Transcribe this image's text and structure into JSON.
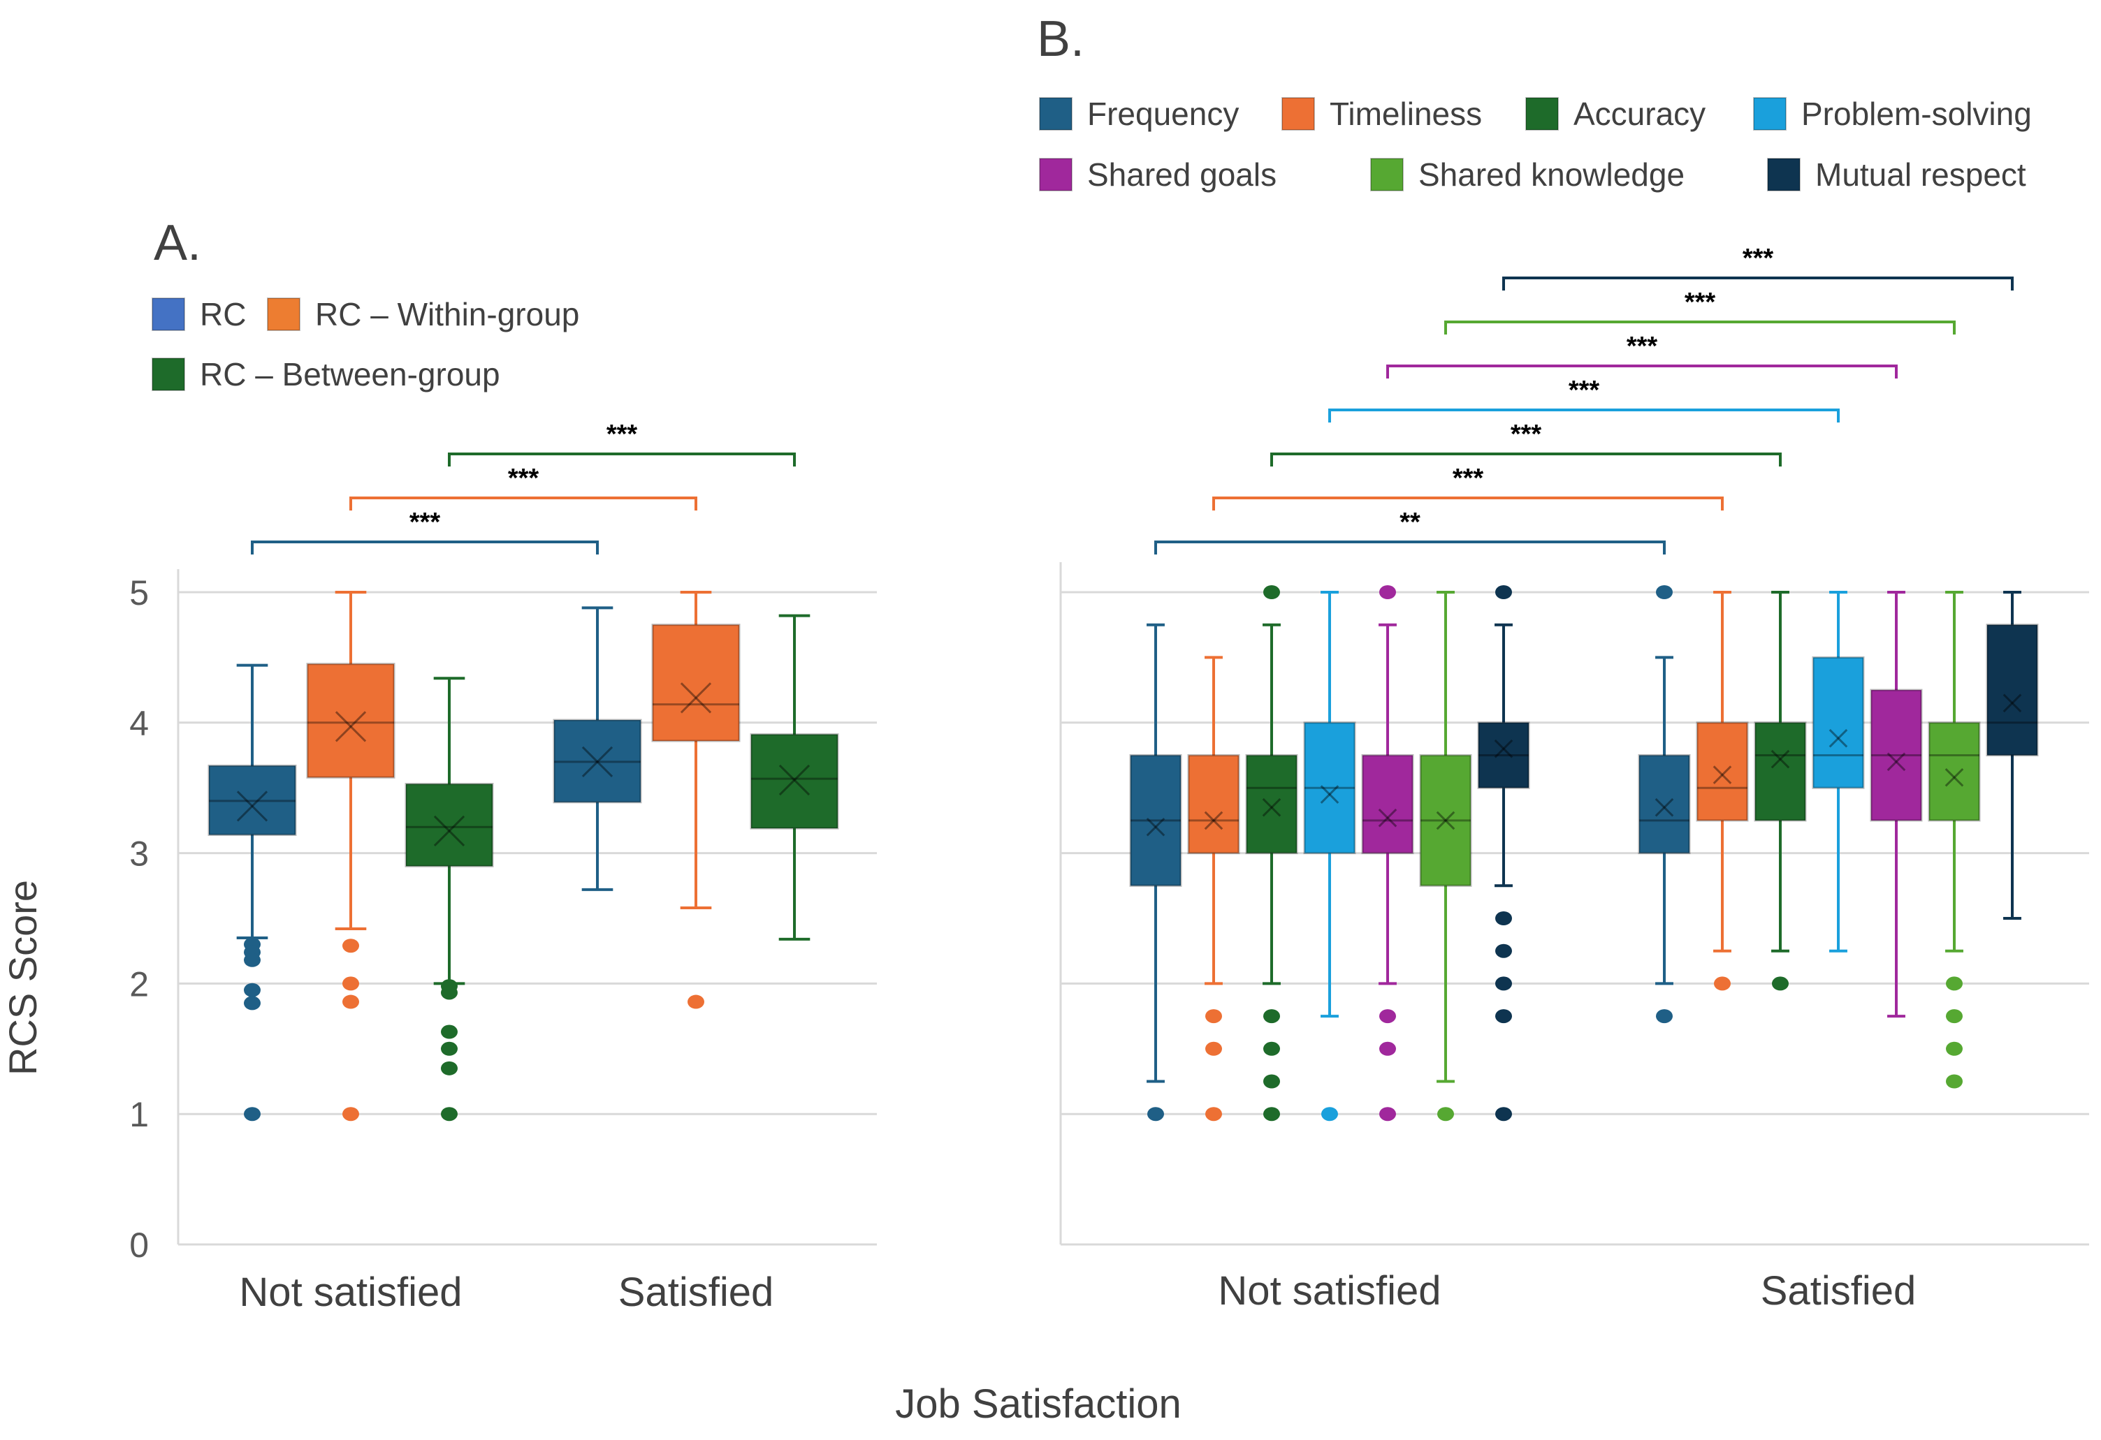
{
  "chart_data": [
    {
      "panel_label": "A.",
      "type": "box",
      "categories": [
        "Not satisfied",
        "Satisfied"
      ],
      "ylabel": "RCS Score",
      "ylim": [
        0,
        5
      ],
      "yticks": [
        "0",
        "1",
        "2",
        "3",
        "4",
        "5"
      ],
      "grid": true,
      "legend": [
        {
          "name": "RC",
          "color": "#4472c4"
        },
        {
          "name": "RC – Within-group",
          "color": "#ed7d31"
        },
        {
          "name": "RC – Between-group",
          "color": "#1e6b2a"
        }
      ],
      "series": [
        {
          "name": "RC",
          "color": "#1f5f86",
          "boxes": [
            {
              "min": 2.35,
              "q1": 3.14,
              "median": 3.4,
              "q3": 3.67,
              "max": 4.44,
              "mean": 3.36,
              "outliers": [
                2.3,
                2.24,
                2.18,
                1.95,
                1.85,
                1.0
              ]
            },
            {
              "min": 2.72,
              "q1": 3.39,
              "median": 3.7,
              "q3": 4.02,
              "max": 4.88,
              "mean": 3.7,
              "outliers": []
            }
          ]
        },
        {
          "name": "RC – Within-group",
          "color": "#ed7034",
          "boxes": [
            {
              "min": 2.42,
              "q1": 3.58,
              "median": 4.0,
              "q3": 4.45,
              "max": 5.0,
              "mean": 3.97,
              "outliers": [
                2.29,
                2.0,
                1.86,
                1.0
              ]
            },
            {
              "min": 2.58,
              "q1": 3.86,
              "median": 4.14,
              "q3": 4.75,
              "max": 5.0,
              "mean": 4.19,
              "outliers": [
                1.86
              ]
            }
          ]
        },
        {
          "name": "RC – Between-group",
          "color": "#1e6b2a",
          "boxes": [
            {
              "min": 2.0,
              "q1": 2.9,
              "median": 3.2,
              "q3": 3.53,
              "max": 4.34,
              "mean": 3.17,
              "outliers": [
                1.98,
                1.93,
                1.63,
                1.5,
                1.35,
                1.0
              ]
            },
            {
              "min": 2.34,
              "q1": 3.19,
              "median": 3.57,
              "q3": 3.91,
              "max": 4.82,
              "mean": 3.56,
              "outliers": []
            }
          ]
        }
      ],
      "significance": [
        {
          "series": "RC",
          "label": "***"
        },
        {
          "series": "RC – Within-group",
          "label": "***"
        },
        {
          "series": "RC – Between-group",
          "label": "***"
        }
      ]
    },
    {
      "panel_label": "B.",
      "type": "box",
      "categories": [
        "Not satisfied",
        "Satisfied"
      ],
      "ylim": [
        0,
        5
      ],
      "grid": true,
      "legend": [
        {
          "name": "Frequency",
          "color": "#1f5f86"
        },
        {
          "name": "Timeliness",
          "color": "#ed7034"
        },
        {
          "name": "Accuracy",
          "color": "#1e6b2a"
        },
        {
          "name": "Problem-solving",
          "color": "#1aa0dc"
        },
        {
          "name": "Shared goals",
          "color": "#a0289c"
        },
        {
          "name": "Shared knowledge",
          "color": "#56a832"
        },
        {
          "name": "Mutual respect",
          "color": "#0e3450"
        }
      ],
      "series": [
        {
          "name": "Frequency",
          "color": "#1f5f86",
          "boxes": [
            {
              "min": 1.25,
              "q1": 2.75,
              "median": 3.25,
              "q3": 3.75,
              "max": 4.75,
              "mean": 3.2,
              "outliers": [
                1.0
              ]
            },
            {
              "min": 2.0,
              "q1": 3.0,
              "median": 3.25,
              "q3": 3.75,
              "max": 4.5,
              "mean": 3.35,
              "outliers": [
                5.0,
                1.75
              ]
            }
          ]
        },
        {
          "name": "Timeliness",
          "color": "#ed7034",
          "boxes": [
            {
              "min": 2.0,
              "q1": 3.0,
              "median": 3.25,
              "q3": 3.75,
              "max": 4.5,
              "mean": 3.25,
              "outliers": [
                1.75,
                1.5,
                1.0
              ]
            },
            {
              "min": 2.25,
              "q1": 3.25,
              "median": 3.5,
              "q3": 4.0,
              "max": 5.0,
              "mean": 3.6,
              "outliers": [
                2.0
              ]
            }
          ]
        },
        {
          "name": "Accuracy",
          "color": "#1e6b2a",
          "boxes": [
            {
              "min": 2.0,
              "q1": 3.0,
              "median": 3.5,
              "q3": 3.75,
              "max": 4.75,
              "mean": 3.35,
              "outliers": [
                5.0,
                1.75,
                1.5,
                1.25,
                1.0
              ]
            },
            {
              "min": 2.25,
              "q1": 3.25,
              "median": 3.75,
              "q3": 4.0,
              "max": 5.0,
              "mean": 3.72,
              "outliers": [
                2.0
              ]
            }
          ]
        },
        {
          "name": "Problem-solving",
          "color": "#1aa0dc",
          "boxes": [
            {
              "min": 1.75,
              "q1": 3.0,
              "median": 3.5,
              "q3": 4.0,
              "max": 5.0,
              "mean": 3.45,
              "outliers": [
                1.0
              ]
            },
            {
              "min": 2.25,
              "q1": 3.5,
              "median": 3.75,
              "q3": 4.5,
              "max": 5.0,
              "mean": 3.88,
              "outliers": []
            }
          ]
        },
        {
          "name": "Shared goals",
          "color": "#a0289c",
          "boxes": [
            {
              "min": 2.0,
              "q1": 3.0,
              "median": 3.25,
              "q3": 3.75,
              "max": 4.75,
              "mean": 3.27,
              "outliers": [
                5.0,
                1.75,
                1.5,
                1.0
              ]
            },
            {
              "min": 1.75,
              "q1": 3.25,
              "median": 3.75,
              "q3": 4.25,
              "max": 5.0,
              "mean": 3.7,
              "outliers": []
            }
          ]
        },
        {
          "name": "Shared knowledge",
          "color": "#56a832",
          "boxes": [
            {
              "min": 1.25,
              "q1": 2.75,
              "median": 3.25,
              "q3": 3.75,
              "max": 5.0,
              "mean": 3.25,
              "outliers": [
                1.0
              ]
            },
            {
              "min": 2.25,
              "q1": 3.25,
              "median": 3.75,
              "q3": 4.0,
              "max": 5.0,
              "mean": 3.58,
              "outliers": [
                2.0,
                1.75,
                1.5,
                1.25
              ]
            }
          ]
        },
        {
          "name": "Mutual respect",
          "color": "#0e3450",
          "boxes": [
            {
              "min": 2.75,
              "q1": 3.5,
              "median": 3.75,
              "q3": 4.0,
              "max": 4.75,
              "mean": 3.8,
              "outliers": [
                5.0,
                2.5,
                2.25,
                2.0,
                1.75,
                1.0
              ]
            },
            {
              "min": 2.5,
              "q1": 3.75,
              "median": 4.0,
              "q3": 4.75,
              "max": 5.0,
              "mean": 4.15,
              "outliers": []
            }
          ]
        }
      ],
      "significance": [
        {
          "series": "Frequency",
          "label": "**"
        },
        {
          "series": "Timeliness",
          "label": "***"
        },
        {
          "series": "Accuracy",
          "label": "***"
        },
        {
          "series": "Problem-solving",
          "label": "***"
        },
        {
          "series": "Shared goals",
          "label": "***"
        },
        {
          "series": "Shared knowledge",
          "label": "***"
        },
        {
          "series": "Mutual respect",
          "label": "***"
        }
      ]
    }
  ],
  "shared_xlabel": "Job Satisfaction"
}
